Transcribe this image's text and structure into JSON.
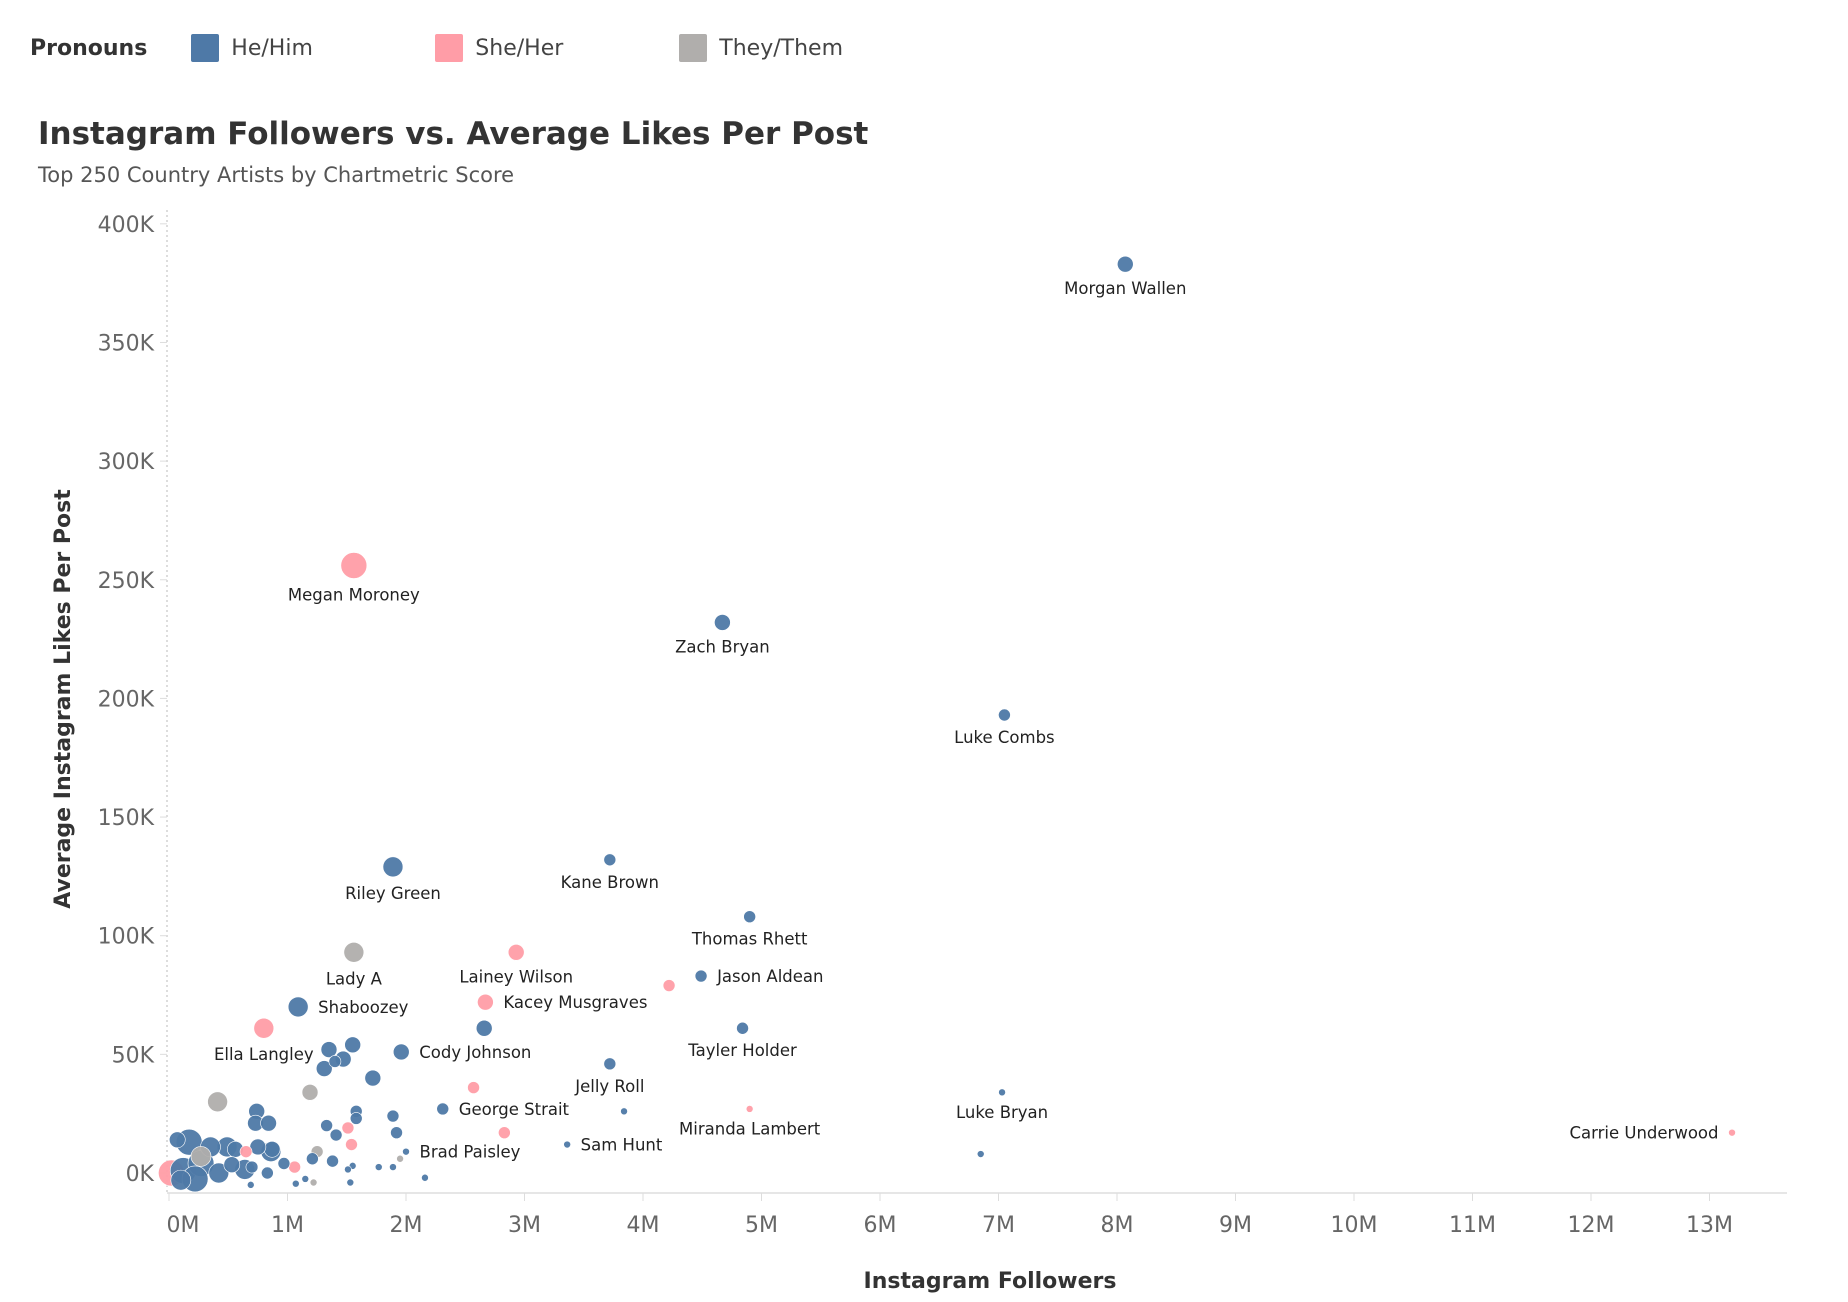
{
  "legend": {
    "title": "Pronouns",
    "items": [
      {
        "label": "He/Him",
        "color": "#4e79a7"
      },
      {
        "label": "She/Her",
        "color": "#ff9da7"
      },
      {
        "label": "They/Them",
        "color": "#b0aeac"
      }
    ]
  },
  "chart_data": {
    "type": "scatter",
    "title": "Instagram Followers vs. Average Likes Per Post",
    "subtitle": "Top 250 Country Artists by Chartmetric Score",
    "xlabel": "Instagram Followers",
    "ylabel": "Average Instagram Likes Per Post",
    "x_unit": "M followers",
    "y_unit": "K likes",
    "xlim": [
      0,
      13.7
    ],
    "ylim": [
      -8,
      410
    ],
    "x_ticks": [
      "0M",
      "1M",
      "2M",
      "3M",
      "4M",
      "5M",
      "6M",
      "7M",
      "8M",
      "9M",
      "10M",
      "11M",
      "12M",
      "13M"
    ],
    "y_ticks": [
      "0K",
      "50K",
      "100K",
      "150K",
      "200K",
      "250K",
      "300K",
      "350K",
      "400K"
    ],
    "grid": false,
    "legend_placement": "top",
    "color_by": "Pronouns",
    "points": [
      {
        "label": "Morgan Wallen",
        "x": 8.07,
        "y": 383,
        "group": "He/Him",
        "size": 3,
        "label_pos": "below"
      },
      {
        "label": "Megan Moroney",
        "x": 1.56,
        "y": 256,
        "group": "She/Her",
        "size": 5,
        "label_pos": "below"
      },
      {
        "label": "Zach Bryan",
        "x": 4.67,
        "y": 232,
        "group": "He/Him",
        "size": 3,
        "label_pos": "below"
      },
      {
        "label": "Luke Combs",
        "x": 7.05,
        "y": 193,
        "group": "He/Him",
        "size": 2,
        "label_pos": "below"
      },
      {
        "label": "Riley Green",
        "x": 1.89,
        "y": 129,
        "group": "He/Him",
        "size": 4,
        "label_pos": "below"
      },
      {
        "label": "Kane Brown",
        "x": 3.72,
        "y": 132,
        "group": "He/Him",
        "size": 2,
        "label_pos": "below"
      },
      {
        "label": "Thomas Rhett",
        "x": 4.9,
        "y": 108,
        "group": "He/Him",
        "size": 2,
        "label_pos": "below"
      },
      {
        "label": "Lady A",
        "x": 1.56,
        "y": 93,
        "group": "They/Them",
        "size": 4,
        "label_pos": "below"
      },
      {
        "label": "Lainey Wilson",
        "x": 2.93,
        "y": 93,
        "group": "She/Her",
        "size": 3,
        "label_pos": "below"
      },
      {
        "label": "Jason Aldean",
        "x": 4.49,
        "y": 83,
        "group": "He/Him",
        "size": 2,
        "label_pos": "right"
      },
      {
        "label": "",
        "x": 4.22,
        "y": 79,
        "group": "She/Her",
        "size": 2
      },
      {
        "label": "Kacey Musgraves",
        "x": 2.67,
        "y": 72,
        "group": "She/Her",
        "size": 3,
        "label_pos": "right"
      },
      {
        "label": "Shaboozey",
        "x": 1.09,
        "y": 70,
        "group": "He/Him",
        "size": 4,
        "label_pos": "right"
      },
      {
        "label": "Ella Langley",
        "x": 0.8,
        "y": 61,
        "group": "She/Her",
        "size": 4,
        "label_pos": "below"
      },
      {
        "label": "",
        "x": 2.66,
        "y": 61,
        "group": "He/Him",
        "size": 3
      },
      {
        "label": "Tayler Holder",
        "x": 4.84,
        "y": 61,
        "group": "He/Him",
        "size": 2,
        "label_pos": "below"
      },
      {
        "label": "Cody Johnson",
        "x": 1.96,
        "y": 51,
        "group": "He/Him",
        "size": 3,
        "label_pos": "right"
      },
      {
        "label": "Jelly Roll",
        "x": 3.72,
        "y": 46,
        "group": "He/Him",
        "size": 2,
        "label_pos": "below"
      },
      {
        "label": "",
        "x": 2.57,
        "y": 36,
        "group": "She/Her",
        "size": 2
      },
      {
        "label": "George Strait",
        "x": 2.31,
        "y": 27,
        "group": "He/Him",
        "size": 2,
        "label_pos": "right"
      },
      {
        "label": "",
        "x": 3.84,
        "y": 26,
        "group": "He/Him",
        "size": 1
      },
      {
        "label": "Miranda Lambert",
        "x": 4.9,
        "y": 27,
        "group": "She/Her",
        "size": 1,
        "label_pos": "below"
      },
      {
        "label": "Luke Bryan",
        "x": 7.03,
        "y": 34,
        "group": "He/Him",
        "size": 1,
        "label_pos": "below"
      },
      {
        "label": "Carrie Underwood",
        "x": 13.19,
        "y": 17,
        "group": "She/Her",
        "size": 1,
        "label_pos": "left"
      },
      {
        "label": "Sam Hunt",
        "x": 3.36,
        "y": 12,
        "group": "He/Him",
        "size": 1,
        "label_pos": "right"
      },
      {
        "label": "",
        "x": 6.85,
        "y": 8,
        "group": "He/Him",
        "size": 1
      },
      {
        "label": "Brad Paisley",
        "x": 2.0,
        "y": 9,
        "group": "He/Him",
        "size": 1,
        "label_pos": "right"
      },
      {
        "label": "",
        "x": 0.41,
        "y": 30,
        "group": "They/Them",
        "size": 4
      },
      {
        "label": "",
        "x": 1.19,
        "y": 34,
        "group": "They/Them",
        "size": 3
      },
      {
        "label": "",
        "x": 0.74,
        "y": 26,
        "group": "He/Him",
        "size": 3
      },
      {
        "label": "",
        "x": 0.73,
        "y": 21,
        "group": "He/Him",
        "size": 3
      },
      {
        "label": "",
        "x": 0.84,
        "y": 21,
        "group": "He/Him",
        "size": 3
      },
      {
        "label": "",
        "x": 1.35,
        "y": 52,
        "group": "He/Him",
        "size": 3
      },
      {
        "label": "",
        "x": 1.55,
        "y": 54,
        "group": "He/Him",
        "size": 3
      },
      {
        "label": "",
        "x": 1.47,
        "y": 48,
        "group": "He/Him",
        "size": 3
      },
      {
        "label": "",
        "x": 1.4,
        "y": 47,
        "group": "He/Him",
        "size": 2
      },
      {
        "label": "",
        "x": 1.31,
        "y": 44,
        "group": "He/Him",
        "size": 3
      },
      {
        "label": "",
        "x": 1.72,
        "y": 40,
        "group": "He/Him",
        "size": 3
      },
      {
        "label": "",
        "x": 1.58,
        "y": 26,
        "group": "He/Him",
        "size": 2
      },
      {
        "label": "",
        "x": 1.58,
        "y": 23,
        "group": "He/Him",
        "size": 2
      },
      {
        "label": "",
        "x": 1.89,
        "y": 24,
        "group": "He/Him",
        "size": 2
      },
      {
        "label": "",
        "x": 1.33,
        "y": 20,
        "group": "He/Him",
        "size": 2
      },
      {
        "label": "",
        "x": 1.92,
        "y": 17,
        "group": "He/Him",
        "size": 2
      },
      {
        "label": "",
        "x": 1.41,
        "y": 16,
        "group": "He/Him",
        "size": 2
      },
      {
        "label": "",
        "x": 1.51,
        "y": 19,
        "group": "She/Her",
        "size": 2
      },
      {
        "label": "",
        "x": 1.54,
        "y": 12,
        "group": "She/Her",
        "size": 2
      },
      {
        "label": "",
        "x": 1.25,
        "y": 9,
        "group": "They/Them",
        "size": 2
      },
      {
        "label": "",
        "x": 1.38,
        "y": 5,
        "group": "He/Him",
        "size": 2
      },
      {
        "label": "",
        "x": 1.21,
        "y": 6,
        "group": "He/Him",
        "size": 2
      },
      {
        "label": "",
        "x": 1.55,
        "y": 3,
        "group": "He/Him",
        "size": 1
      },
      {
        "label": "",
        "x": 1.51,
        "y": 1.5,
        "group": "He/Him",
        "size": 1
      },
      {
        "label": "",
        "x": 1.77,
        "y": 2.5,
        "group": "He/Him",
        "size": 1
      },
      {
        "label": "",
        "x": 1.89,
        "y": 2.5,
        "group": "He/Him",
        "size": 1
      },
      {
        "label": "",
        "x": 1.95,
        "y": 6,
        "group": "They/Them",
        "size": 1
      },
      {
        "label": "",
        "x": 2.16,
        "y": -2,
        "group": "He/Him",
        "size": 1
      },
      {
        "label": "",
        "x": 2.83,
        "y": 17,
        "group": "She/Her",
        "size": 2
      },
      {
        "label": "",
        "x": 1.06,
        "y": 2.5,
        "group": "She/Her",
        "size": 2
      },
      {
        "label": "",
        "x": 1.53,
        "y": -4,
        "group": "He/Him",
        "size": 1
      },
      {
        "label": "",
        "x": 0.87,
        "y": 10,
        "group": "He/Him",
        "size": 3
      },
      {
        "label": "",
        "x": 0.86,
        "y": 9,
        "group": "He/Him",
        "size": 4
      },
      {
        "label": "",
        "x": 0.75,
        "y": 11,
        "group": "He/Him",
        "size": 3
      },
      {
        "label": "",
        "x": 0.65,
        "y": 9,
        "group": "She/Her",
        "size": 2
      },
      {
        "label": "",
        "x": 0.49,
        "y": 11,
        "group": "He/Him",
        "size": 4
      },
      {
        "label": "",
        "x": 0.56,
        "y": 10,
        "group": "He/Him",
        "size": 3
      },
      {
        "label": "",
        "x": 0.35,
        "y": 11,
        "group": "He/Him",
        "size": 4
      },
      {
        "label": "",
        "x": 0.17,
        "y": 13,
        "group": "He/Him",
        "size": 5
      },
      {
        "label": "",
        "x": 0.07,
        "y": 14,
        "group": "He/Him",
        "size": 3
      },
      {
        "label": "",
        "x": 0.64,
        "y": 1.5,
        "group": "He/Him",
        "size": 4
      },
      {
        "label": "",
        "x": 0.97,
        "y": 4,
        "group": "He/Him",
        "size": 2
      },
      {
        "label": "",
        "x": 0.83,
        "y": 0,
        "group": "He/Him",
        "size": 2
      },
      {
        "label": "",
        "x": 0.69,
        "y": -5,
        "group": "He/Him",
        "size": 1
      },
      {
        "label": "",
        "x": 0.02,
        "y": 0,
        "group": "She/Her",
        "size": 5
      },
      {
        "label": "",
        "x": 0.12,
        "y": 1,
        "group": "He/Him",
        "size": 5
      },
      {
        "label": "",
        "x": 0.27,
        "y": 7,
        "group": "They/Them",
        "size": 4
      },
      {
        "label": "",
        "x": 0.27,
        "y": 4,
        "group": "He/Him",
        "size": 5
      },
      {
        "label": "",
        "x": 0.42,
        "y": 0,
        "group": "He/Him",
        "size": 4
      },
      {
        "label": "",
        "x": 0.53,
        "y": 3.5,
        "group": "He/Him",
        "size": 3
      },
      {
        "label": "",
        "x": 1.15,
        "y": -2.5,
        "group": "He/Him",
        "size": 1
      },
      {
        "label": "",
        "x": 1.22,
        "y": -4,
        "group": "They/Them",
        "size": 1
      },
      {
        "label": "",
        "x": 1.07,
        "y": -4.5,
        "group": "He/Him",
        "size": 1
      },
      {
        "label": "",
        "x": 0.7,
        "y": 2.5,
        "group": "He/Him",
        "size": 2
      },
      {
        "label": "",
        "x": 0.22,
        "y": -2.5,
        "group": "He/Him",
        "size": 5
      },
      {
        "label": "",
        "x": 0.1,
        "y": -3,
        "group": "He/Him",
        "size": 4
      }
    ]
  }
}
